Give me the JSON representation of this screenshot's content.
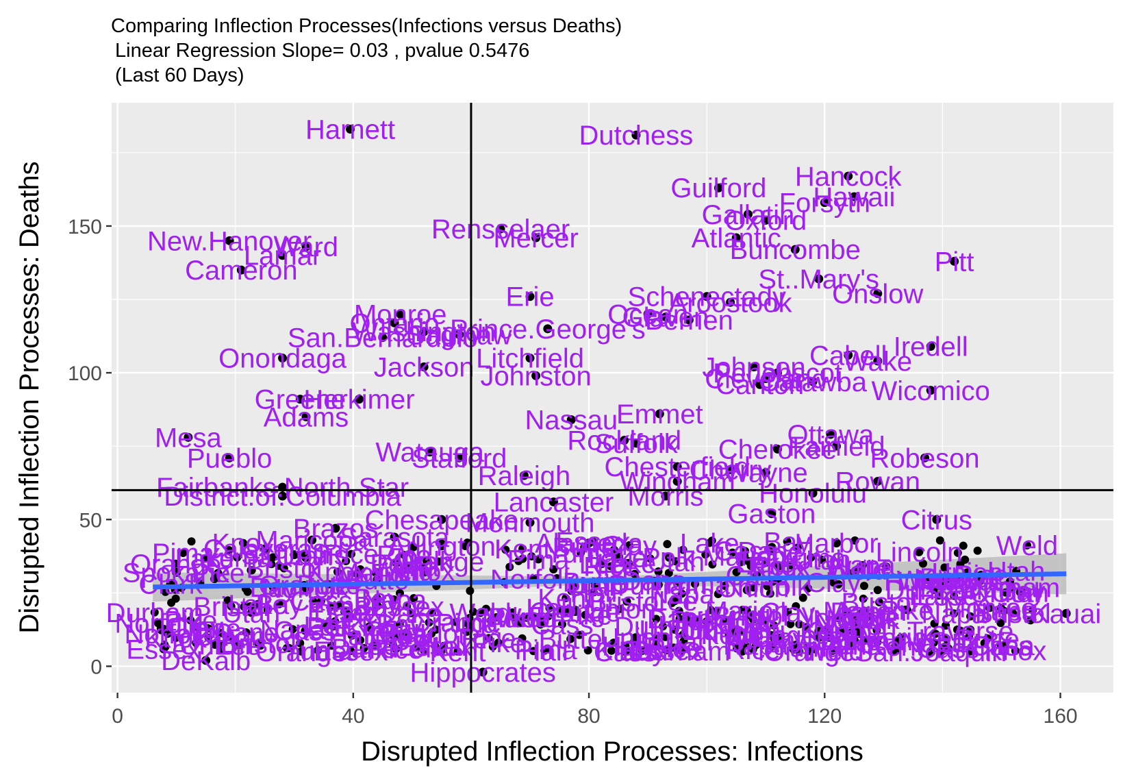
{
  "chart_data": {
    "type": "scatter",
    "title": "Comparing Inflection Processes(Infections versus Deaths)",
    "subtitle": "Linear Regression Slope= 0.03 , pvalue 0.5476",
    "subtitle2": "(Last 60 Days)",
    "xlabel": "Disrupted Inflection Processes: Infections",
    "ylabel": "Disrupted Inflection Processes: Deaths",
    "xlim": [
      -1,
      169
    ],
    "ylim": [
      -9,
      192
    ],
    "xticks": [
      0,
      40,
      80,
      120,
      160
    ],
    "yticks": [
      0,
      50,
      100,
      150
    ],
    "xtick_labels": [
      "0",
      "40",
      "80",
      "120",
      "160"
    ],
    "ytick_labels": [
      "0",
      "50",
      "100",
      "150"
    ],
    "vline_x": 60,
    "hline_y": 60,
    "regression": {
      "x": [
        6,
        161
      ],
      "y": [
        27,
        31.5
      ],
      "ci_low_end": [
        22,
        24.5
      ],
      "ci_high_end": [
        32,
        38.5
      ]
    },
    "grid": true,
    "colors": {
      "panel": "#ebebeb",
      "grid": "#ffffff",
      "label": "#a020f0",
      "point": "#000000",
      "fit": "#3366ff",
      "band": "#bdbdbd"
    },
    "labeled_points": [
      {
        "label": "Harnett",
        "x": 39.5,
        "y": 183
      },
      {
        "label": "Dutchess",
        "x": 88,
        "y": 181
      },
      {
        "label": "Hancock",
        "x": 124,
        "y": 167
      },
      {
        "label": "Guilford",
        "x": 102,
        "y": 163
      },
      {
        "label": "Hawaii",
        "x": 125,
        "y": 160
      },
      {
        "label": "Forsyth",
        "x": 120,
        "y": 158
      },
      {
        "label": "Gallatin",
        "x": 107,
        "y": 154
      },
      {
        "label": "Oxford",
        "x": 110,
        "y": 152
      },
      {
        "label": "Rensselaer",
        "x": 65,
        "y": 149
      },
      {
        "label": "Mercer",
        "x": 71,
        "y": 146
      },
      {
        "label": "Atlantic",
        "x": 105,
        "y": 146
      },
      {
        "label": "New.Hanover",
        "x": 19,
        "y": 145
      },
      {
        "label": "Ward",
        "x": 32,
        "y": 143
      },
      {
        "label": "Buncombe",
        "x": 115,
        "y": 142
      },
      {
        "label": "Lamar",
        "x": 28,
        "y": 140
      },
      {
        "label": "Pitt",
        "x": 142,
        "y": 138
      },
      {
        "label": "Cameron",
        "x": 21,
        "y": 135
      },
      {
        "label": "St..Mary's",
        "x": 119,
        "y": 132
      },
      {
        "label": "Onslow",
        "x": 129,
        "y": 127
      },
      {
        "label": "Erie",
        "x": 70,
        "y": 126
      },
      {
        "label": "Schenectady",
        "x": 100,
        "y": 126
      },
      {
        "label": "Aroostook",
        "x": 104,
        "y": 124
      },
      {
        "label": "Monroe",
        "x": 48,
        "y": 120
      },
      {
        "label": "Ocean",
        "x": 90,
        "y": 120
      },
      {
        "label": "Glaven",
        "x": 93,
        "y": 119
      },
      {
        "label": "Berrien",
        "x": 97,
        "y": 118
      },
      {
        "label": "Ontario",
        "x": 47,
        "y": 117
      },
      {
        "label": "Prince.George's",
        "x": 73,
        "y": 115
      },
      {
        "label": "Washington",
        "x": 52,
        "y": 114
      },
      {
        "label": "Saginaw",
        "x": 58,
        "y": 113
      },
      {
        "label": "San.Bernardino",
        "x": 45,
        "y": 112
      },
      {
        "label": "Iredell",
        "x": 138,
        "y": 109
      },
      {
        "label": "Cabell",
        "x": 124,
        "y": 106
      },
      {
        "label": "Onondaga",
        "x": 28,
        "y": 105
      },
      {
        "label": "Litchfield",
        "x": 70,
        "y": 105
      },
      {
        "label": "Wake",
        "x": 129,
        "y": 104
      },
      {
        "label": "Jackson",
        "x": 52,
        "y": 102
      },
      {
        "label": "Johnson",
        "x": 108,
        "y": 102
      },
      {
        "label": "Penobscot",
        "x": 112,
        "y": 100
      },
      {
        "label": "Johnston",
        "x": 71,
        "y": 99
      },
      {
        "label": "Cleveland",
        "x": 110,
        "y": 98
      },
      {
        "label": "Catawba",
        "x": 118,
        "y": 97
      },
      {
        "label": "Canton",
        "x": 109,
        "y": 96
      },
      {
        "label": "Wicomico",
        "x": 138,
        "y": 94
      },
      {
        "label": "Herkimer",
        "x": 41,
        "y": 91
      },
      {
        "label": "Greene",
        "x": 31,
        "y": 91
      },
      {
        "label": "Emmet",
        "x": 92,
        "y": 86
      },
      {
        "label": "Adams",
        "x": 32,
        "y": 85
      },
      {
        "label": "Nassau",
        "x": 77,
        "y": 84
      },
      {
        "label": "Mesa",
        "x": 12,
        "y": 78
      },
      {
        "label": "Ottawa",
        "x": 121,
        "y": 79
      },
      {
        "label": "Rockland",
        "x": 86,
        "y": 77
      },
      {
        "label": "Suffolk",
        "x": 88,
        "y": 76
      },
      {
        "label": "Cherokee",
        "x": 112,
        "y": 74
      },
      {
        "label": "Fairfield",
        "x": 122,
        "y": 75
      },
      {
        "label": "Robeson",
        "x": 137,
        "y": 71
      },
      {
        "label": "Watauga",
        "x": 53,
        "y": 73
      },
      {
        "label": "Stafford",
        "x": 58,
        "y": 71
      },
      {
        "label": "Pueblo",
        "x": 19,
        "y": 71
      },
      {
        "label": "Chesterfield",
        "x": 95,
        "y": 68
      },
      {
        "label": "Cherry",
        "x": 104,
        "y": 67
      },
      {
        "label": "Wayne",
        "x": 110,
        "y": 66
      },
      {
        "label": "Raleigh",
        "x": 69,
        "y": 65
      },
      {
        "label": "Windham",
        "x": 95,
        "y": 63
      },
      {
        "label": "Rowan",
        "x": 129,
        "y": 63
      },
      {
        "label": "Fairbanks.North.Star",
        "x": 28,
        "y": 61
      },
      {
        "label": "Honolulu",
        "x": 118,
        "y": 59
      },
      {
        "label": "District.of.Columbia",
        "x": 28,
        "y": 58
      },
      {
        "label": "Morris",
        "x": 93,
        "y": 58
      },
      {
        "label": "Lancaster",
        "x": 74,
        "y": 56
      },
      {
        "label": "Gaston",
        "x": 111,
        "y": 52
      },
      {
        "label": "Chesapeake",
        "x": 55,
        "y": 50
      },
      {
        "label": "Monmouth",
        "x": 70,
        "y": 49
      },
      {
        "label": "Citrus",
        "x": 139,
        "y": 50
      },
      {
        "label": "Brazos",
        "x": 37,
        "y": 47
      },
      {
        "label": "Sarasota",
        "x": 47,
        "y": 44
      },
      {
        "label": "Maricopa",
        "x": 33,
        "y": 43
      },
      {
        "label": "Harbor",
        "x": 122,
        "y": 42
      },
      {
        "label": "Alameda",
        "x": 80,
        "y": 42
      },
      {
        "label": "Arlington",
        "x": 55,
        "y": 41
      },
      {
        "label": "Calaveras",
        "x": 25,
        "y": 40
      },
      {
        "label": "Lincoln",
        "x": 136,
        "y": 39
      },
      {
        "label": "St..Louis",
        "x": 30,
        "y": 38
      },
      {
        "label": "Spokane",
        "x": 10,
        "y": 32
      },
      {
        "label": "Clark",
        "x": 9,
        "y": 28
      },
      {
        "label": "Humboldt",
        "x": 140,
        "y": 29
      },
      {
        "label": "Kauai",
        "x": 161,
        "y": 18
      },
      {
        "label": "Monroe",
        "x": 148,
        "y": 20
      },
      {
        "label": "Traverse",
        "x": 143,
        "y": 12
      },
      {
        "label": "San.Joaquin",
        "x": 138,
        "y": 5
      },
      {
        "label": "DeKalb",
        "x": 15,
        "y": 2
      },
      {
        "label": "Hippocrates",
        "x": 62,
        "y": -2
      }
    ],
    "unlabeled_point_count": 400
  }
}
